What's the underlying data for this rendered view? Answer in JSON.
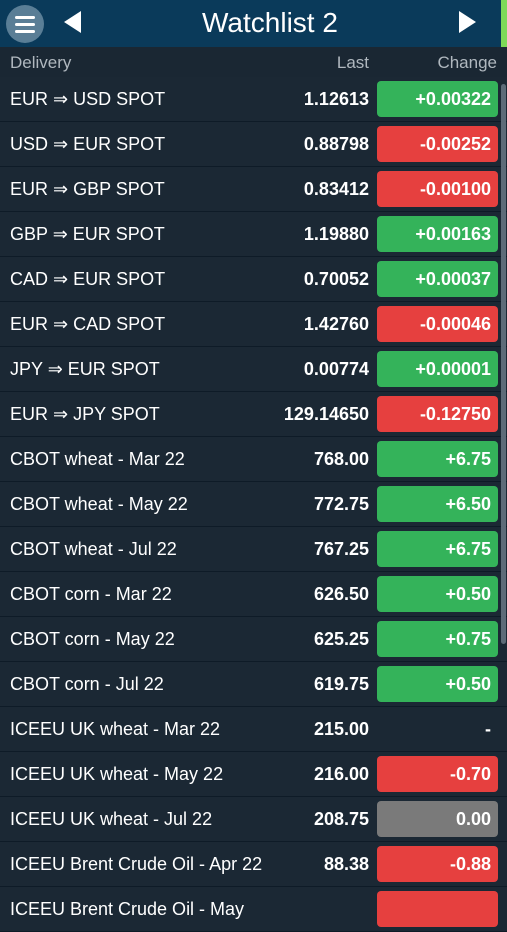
{
  "header": {
    "title": "Watchlist 2",
    "menu_icon": "hamburger-menu-icon",
    "prev_icon": "triangle-left-icon",
    "next_icon": "triangle-right-icon"
  },
  "columns": {
    "delivery": "Delivery",
    "last": "Last",
    "change": "Change"
  },
  "colors": {
    "up": "#34b35a",
    "down": "#e6403f",
    "flat": "#7a7a7a",
    "header": "#0a3a5a"
  },
  "rows": [
    {
      "name": "EUR ⇒ USD SPOT",
      "last": "1.12613",
      "change": "+0.00322",
      "status": "up"
    },
    {
      "name": "USD ⇒ EUR SPOT",
      "last": "0.88798",
      "change": "-0.00252",
      "status": "down"
    },
    {
      "name": "EUR ⇒ GBP SPOT",
      "last": "0.83412",
      "change": "-0.00100",
      "status": "down"
    },
    {
      "name": "GBP ⇒ EUR SPOT",
      "last": "1.19880",
      "change": "+0.00163",
      "status": "up"
    },
    {
      "name": "CAD ⇒ EUR SPOT",
      "last": "0.70052",
      "change": "+0.00037",
      "status": "up"
    },
    {
      "name": "EUR ⇒ CAD SPOT",
      "last": "1.42760",
      "change": "-0.00046",
      "status": "down"
    },
    {
      "name": "JPY ⇒ EUR SPOT",
      "last": "0.00774",
      "change": "+0.00001",
      "status": "up"
    },
    {
      "name": "EUR ⇒ JPY SPOT",
      "last": "129.14650",
      "change": "-0.12750",
      "status": "down"
    },
    {
      "name": "CBOT wheat - Mar 22",
      "last": "768.00",
      "change": "+6.75",
      "status": "up"
    },
    {
      "name": "CBOT wheat - May 22",
      "last": "772.75",
      "change": "+6.50",
      "status": "up"
    },
    {
      "name": "CBOT wheat - Jul 22",
      "last": "767.25",
      "change": "+6.75",
      "status": "up"
    },
    {
      "name": "CBOT corn - Mar 22",
      "last": "626.50",
      "change": "+0.50",
      "status": "up"
    },
    {
      "name": "CBOT corn - May 22",
      "last": "625.25",
      "change": "+0.75",
      "status": "up"
    },
    {
      "name": "CBOT corn - Jul 22",
      "last": "619.75",
      "change": "+0.50",
      "status": "up"
    },
    {
      "name": "ICEEU UK wheat - Mar 22",
      "last": "215.00",
      "change": "-",
      "status": "none"
    },
    {
      "name": "ICEEU UK wheat - May 22",
      "last": "216.00",
      "change": "-0.70",
      "status": "down"
    },
    {
      "name": "ICEEU UK wheat - Jul 22",
      "last": "208.75",
      "change": "0.00",
      "status": "flat"
    },
    {
      "name": "ICEEU Brent Crude Oil - Apr 22",
      "last": "88.38",
      "change": "-0.88",
      "status": "down"
    },
    {
      "name": "ICEEU Brent Crude Oil - May",
      "last": "",
      "change": "",
      "status": "down"
    }
  ]
}
